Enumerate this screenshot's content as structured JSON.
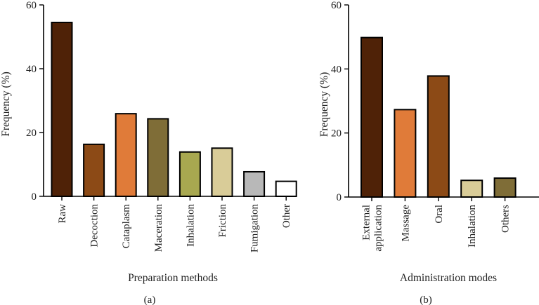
{
  "chart_data": [
    {
      "type": "bar",
      "panel_label": "(a)",
      "categories": [
        "Raw",
        "Decoction",
        "Cataplasm",
        "Maceration",
        "Inhalation",
        "Friction",
        "Fumigation",
        "Other"
      ],
      "values": [
        54.5,
        16.3,
        25.9,
        24.3,
        13.9,
        15.1,
        7.7,
        4.7
      ],
      "colors": [
        "#4f2207",
        "#8c4a16",
        "#e07b39",
        "#7f6d37",
        "#a8a850",
        "#d9cc98",
        "#b8b8b8",
        "#ffffff"
      ],
      "xlabel": "Preparation methods",
      "ylabel": "Frequency (%)",
      "ylim": [
        0,
        60
      ],
      "yticks": [
        0,
        20,
        40,
        60
      ]
    },
    {
      "type": "bar",
      "panel_label": "(b)",
      "categories": [
        "External application",
        "Massage",
        "Oral",
        "Inhalation",
        "Others"
      ],
      "values": [
        49.8,
        27.3,
        37.8,
        5.2,
        5.9
      ],
      "colors": [
        "#4f2207",
        "#e07b39",
        "#8c4a16",
        "#d9cc98",
        "#7f6d37"
      ],
      "xlabel": "Administration modes",
      "ylabel": "Frequency (%)",
      "ylim": [
        0,
        60
      ],
      "yticks": [
        0,
        20,
        40,
        60
      ]
    }
  ]
}
